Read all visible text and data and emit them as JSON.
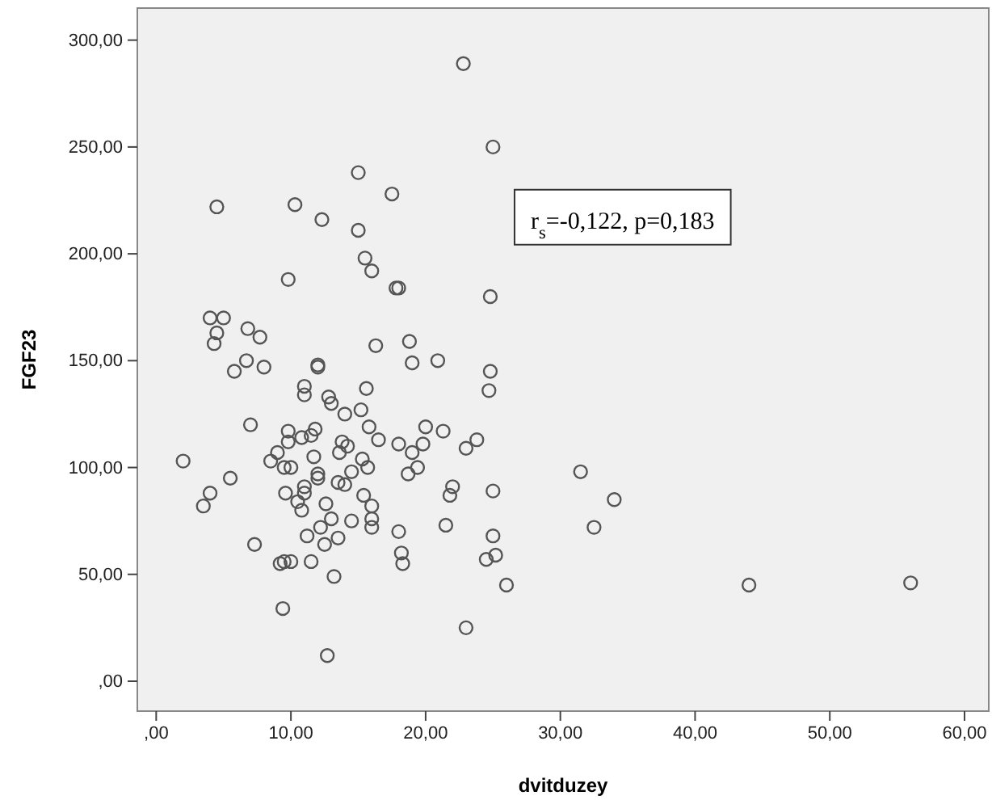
{
  "chart_data": {
    "type": "scatter",
    "xlabel": "dvitduzey",
    "ylabel": "FGF23",
    "annotations": [
      "r$_{s}$=-0,122, p=0,183"
    ],
    "marker": "circle",
    "grid": false,
    "xlim": [
      -1.4,
      61.8
    ],
    "ylim": [
      -14,
      315
    ],
    "xticks": [
      {
        "value": 0,
        "label": ",00"
      },
      {
        "value": 10,
        "label": "10,00"
      },
      {
        "value": 20,
        "label": "20,00"
      },
      {
        "value": 30,
        "label": "30,00"
      },
      {
        "value": 40,
        "label": "40,00"
      },
      {
        "value": 50,
        "label": "50,00"
      },
      {
        "value": 60,
        "label": "60,00"
      }
    ],
    "yticks": [
      {
        "value": 0,
        "label": ",00"
      },
      {
        "value": 50,
        "label": "50,00"
      },
      {
        "value": 100,
        "label": "100,00"
      },
      {
        "value": 150,
        "label": "150,00"
      },
      {
        "value": 200,
        "label": "200,00"
      },
      {
        "value": 250,
        "label": "250,00"
      },
      {
        "value": 300,
        "label": "300,00"
      }
    ],
    "series": [
      {
        "color": "#555555",
        "x": [
          2,
          3.5,
          4,
          4.5,
          4,
          4.5,
          4.3,
          5,
          5.5,
          5.8,
          6.7,
          6.8,
          7,
          7.7,
          7.3,
          8,
          8.5,
          9,
          9.2,
          9.5,
          9.4,
          9.6,
          9.8,
          9.8,
          9.8,
          9.5,
          10,
          10,
          10.3,
          10.5,
          10.8,
          10.8,
          11,
          11,
          11,
          11,
          11.2,
          11.5,
          11.5,
          11.7,
          11.8,
          12,
          12,
          12,
          12,
          12.3,
          12.2,
          12.5,
          12.6,
          12.7,
          12.8,
          13,
          13,
          13.2,
          13.5,
          13.5,
          13.6,
          13.8,
          14,
          14,
          14.2,
          14.5,
          14.5,
          15,
          15,
          15.2,
          15.3,
          15.4,
          15.5,
          15.6,
          15.7,
          15.8,
          16,
          16,
          16,
          16,
          16.3,
          16.5,
          17.5,
          17.8,
          18,
          18,
          18,
          18.2,
          18.3,
          18.7,
          18.8,
          19,
          19,
          19.4,
          19.8,
          20,
          20.9,
          21.3,
          21.5,
          21.8,
          22,
          22.8,
          23,
          23,
          23.8,
          24.5,
          24.7,
          24.8,
          24.8,
          25,
          25,
          25,
          25.2,
          26,
          31.5,
          32.5,
          34,
          44,
          56
        ],
        "values": [
          103,
          82,
          88,
          222,
          170,
          163,
          158,
          170,
          95,
          145,
          150,
          165,
          120,
          161,
          64,
          147,
          103,
          107,
          55,
          56,
          34,
          88,
          188,
          117,
          112,
          100,
          100,
          56,
          223,
          84,
          80,
          114,
          134,
          138,
          91,
          88,
          68,
          56,
          115,
          105,
          118,
          148,
          147,
          97,
          95,
          216,
          72,
          64,
          83,
          12,
          133,
          130,
          76,
          49,
          93,
          67,
          107,
          112,
          125,
          92,
          110,
          75,
          98,
          238,
          211,
          127,
          104,
          87,
          198,
          137,
          100,
          119,
          192,
          76,
          82,
          72,
          157,
          113,
          228,
          184,
          184,
          111,
          70,
          60,
          55,
          97,
          159,
          107,
          149,
          100,
          111,
          119,
          150,
          117,
          73,
          87,
          91,
          289,
          109,
          25,
          113,
          57,
          136,
          145,
          180,
          250,
          89,
          68,
          59,
          45,
          98,
          72,
          85,
          45,
          46
        ]
      }
    ]
  }
}
